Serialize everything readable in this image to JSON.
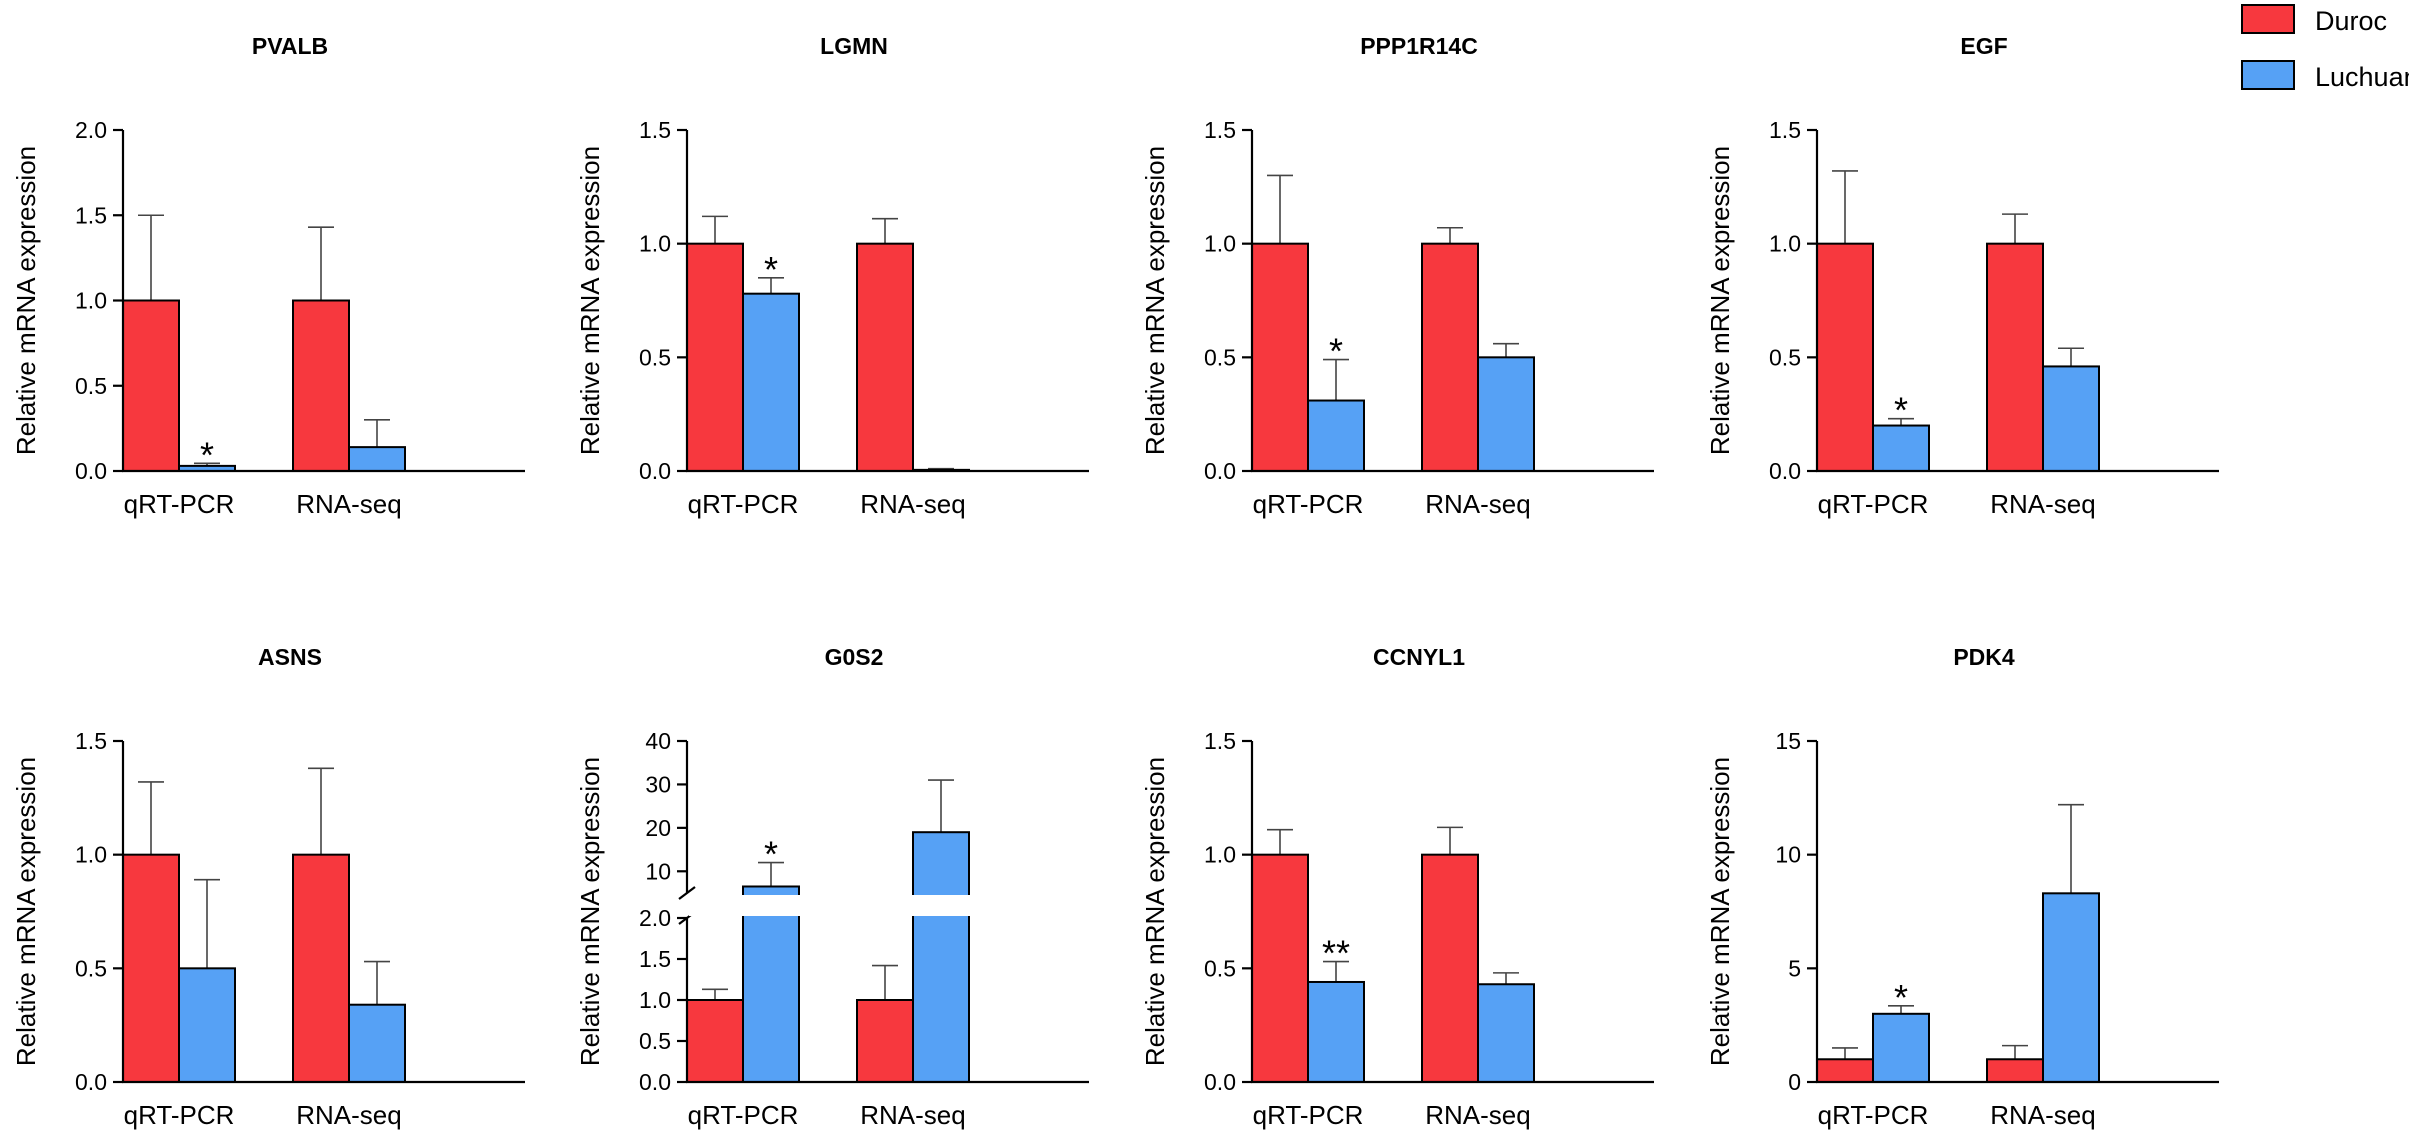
{
  "chart_data": [
    {
      "type": "bar",
      "title": "PVALB",
      "ylabel": "Relative mRNA expression",
      "categories": [
        "qRT-PCR",
        "RNA-seq"
      ],
      "ylim": [
        0,
        2.0
      ],
      "yticks": [
        "0.0",
        "0.5",
        "1.0",
        "1.5",
        "2.0"
      ],
      "ytick_values": [
        0,
        0.5,
        1.0,
        1.5,
        2.0
      ],
      "series": [
        {
          "name": "Duroc",
          "values": [
            1.0,
            1.0
          ],
          "errors": [
            0.5,
            0.43
          ]
        },
        {
          "name": "Luchuan",
          "values": [
            0.03,
            0.14
          ],
          "errors": [
            0.015,
            0.16
          ]
        }
      ],
      "annotations": [
        "*",
        ""
      ]
    },
    {
      "type": "bar",
      "title": "LGMN",
      "ylabel": "Relative mRNA expression",
      "categories": [
        "qRT-PCR",
        "RNA-seq"
      ],
      "ylim": [
        0,
        1.5
      ],
      "yticks": [
        "0.0",
        "0.5",
        "1.0",
        "1.5"
      ],
      "ytick_values": [
        0,
        0.5,
        1.0,
        1.5
      ],
      "series": [
        {
          "name": "Duroc",
          "values": [
            1.0,
            1.0
          ],
          "errors": [
            0.12,
            0.11
          ]
        },
        {
          "name": "Luchuan",
          "values": [
            0.78,
            0.005
          ],
          "errors": [
            0.07,
            0.005
          ]
        }
      ],
      "annotations": [
        "*",
        ""
      ]
    },
    {
      "type": "bar",
      "title": "PPP1R14C",
      "ylabel": "Relative mRNA expression",
      "categories": [
        "qRT-PCR",
        "RNA-seq"
      ],
      "ylim": [
        0,
        1.5
      ],
      "yticks": [
        "0.0",
        "0.5",
        "1.0",
        "1.5"
      ],
      "ytick_values": [
        0,
        0.5,
        1.0,
        1.5
      ],
      "series": [
        {
          "name": "Duroc",
          "values": [
            1.0,
            1.0
          ],
          "errors": [
            0.3,
            0.07
          ]
        },
        {
          "name": "Luchuan",
          "values": [
            0.31,
            0.5
          ],
          "errors": [
            0.18,
            0.06
          ]
        }
      ],
      "annotations": [
        "*",
        ""
      ]
    },
    {
      "type": "bar",
      "title": "EGF",
      "ylabel": "Relative mRNA expression",
      "categories": [
        "qRT-PCR",
        "RNA-seq"
      ],
      "ylim": [
        0,
        1.5
      ],
      "yticks": [
        "0.0",
        "0.5",
        "1.0",
        "1.5"
      ],
      "ytick_values": [
        0,
        0.5,
        1.0,
        1.5
      ],
      "series": [
        {
          "name": "Duroc",
          "values": [
            1.0,
            1.0
          ],
          "errors": [
            0.32,
            0.13
          ]
        },
        {
          "name": "Luchuan",
          "values": [
            0.2,
            0.46
          ],
          "errors": [
            0.03,
            0.08
          ]
        }
      ],
      "annotations": [
        "*",
        ""
      ]
    },
    {
      "type": "bar",
      "title": "ASNS",
      "ylabel": "Relative mRNA expression",
      "categories": [
        "qRT-PCR",
        "RNA-seq"
      ],
      "ylim": [
        0,
        1.5
      ],
      "yticks": [
        "0.0",
        "0.5",
        "1.0",
        "1.5"
      ],
      "ytick_values": [
        0,
        0.5,
        1.0,
        1.5
      ],
      "series": [
        {
          "name": "Duroc",
          "values": [
            1.0,
            1.0
          ],
          "errors": [
            0.32,
            0.38
          ]
        },
        {
          "name": "Luchuan",
          "values": [
            0.5,
            0.34
          ],
          "errors": [
            0.39,
            0.19
          ]
        }
      ],
      "annotations": [
        "",
        ""
      ]
    },
    {
      "type": "bar",
      "title": "G0S2",
      "ylabel": "Relative mRNA expression",
      "categories": [
        "qRT-PCR",
        "RNA-seq"
      ],
      "axis_break": {
        "lower": [
          0,
          2.0
        ],
        "upper": [
          5,
          40
        ]
      },
      "yticks_lower": [
        "0.0",
        "0.5",
        "1.0",
        "1.5",
        "2.0"
      ],
      "ytick_values_lower": [
        0,
        0.5,
        1.0,
        1.5,
        2.0
      ],
      "yticks_upper": [
        "10",
        "20",
        "30",
        "40"
      ],
      "ytick_values_upper": [
        10,
        20,
        30,
        40
      ],
      "series": [
        {
          "name": "Duroc",
          "values": [
            1.0,
            1.0
          ],
          "errors": [
            0.13,
            0.42
          ]
        },
        {
          "name": "Luchuan",
          "values": [
            6.5,
            19
          ],
          "errors": [
            5.5,
            12
          ]
        }
      ],
      "annotations": [
        "*",
        ""
      ]
    },
    {
      "type": "bar",
      "title": "CCNYL1",
      "ylabel": "Relative mRNA expression",
      "categories": [
        "qRT-PCR",
        "RNA-seq"
      ],
      "ylim": [
        0,
        1.5
      ],
      "yticks": [
        "0.0",
        "0.5",
        "1.0",
        "1.5"
      ],
      "ytick_values": [
        0,
        0.5,
        1.0,
        1.5
      ],
      "series": [
        {
          "name": "Duroc",
          "values": [
            1.0,
            1.0
          ],
          "errors": [
            0.11,
            0.12
          ]
        },
        {
          "name": "Luchuan",
          "values": [
            0.44,
            0.43
          ],
          "errors": [
            0.09,
            0.05
          ]
        }
      ],
      "annotations": [
        "**",
        ""
      ]
    },
    {
      "type": "bar",
      "title": "PDK4",
      "ylabel": "Relative mRNA expression",
      "categories": [
        "qRT-PCR",
        "RNA-seq"
      ],
      "ylim": [
        0,
        15
      ],
      "yticks": [
        "0",
        "5",
        "10",
        "15"
      ],
      "ytick_values": [
        0,
        5,
        10,
        15
      ],
      "series": [
        {
          "name": "Duroc",
          "values": [
            1.0,
            1.0
          ],
          "errors": [
            0.5,
            0.6
          ]
        },
        {
          "name": "Luchuan",
          "values": [
            3.0,
            8.3
          ],
          "errors": [
            0.35,
            3.9
          ]
        }
      ],
      "annotations": [
        "*",
        ""
      ]
    }
  ],
  "legend": {
    "items": [
      {
        "label": "Duroc",
        "color": "#f7383e"
      },
      {
        "label": "Luchuan",
        "color": "#56a1f5"
      }
    ]
  },
  "colors": {
    "duroc": "#f7383e",
    "luchuan": "#56a1f5",
    "axis": "#000000"
  }
}
